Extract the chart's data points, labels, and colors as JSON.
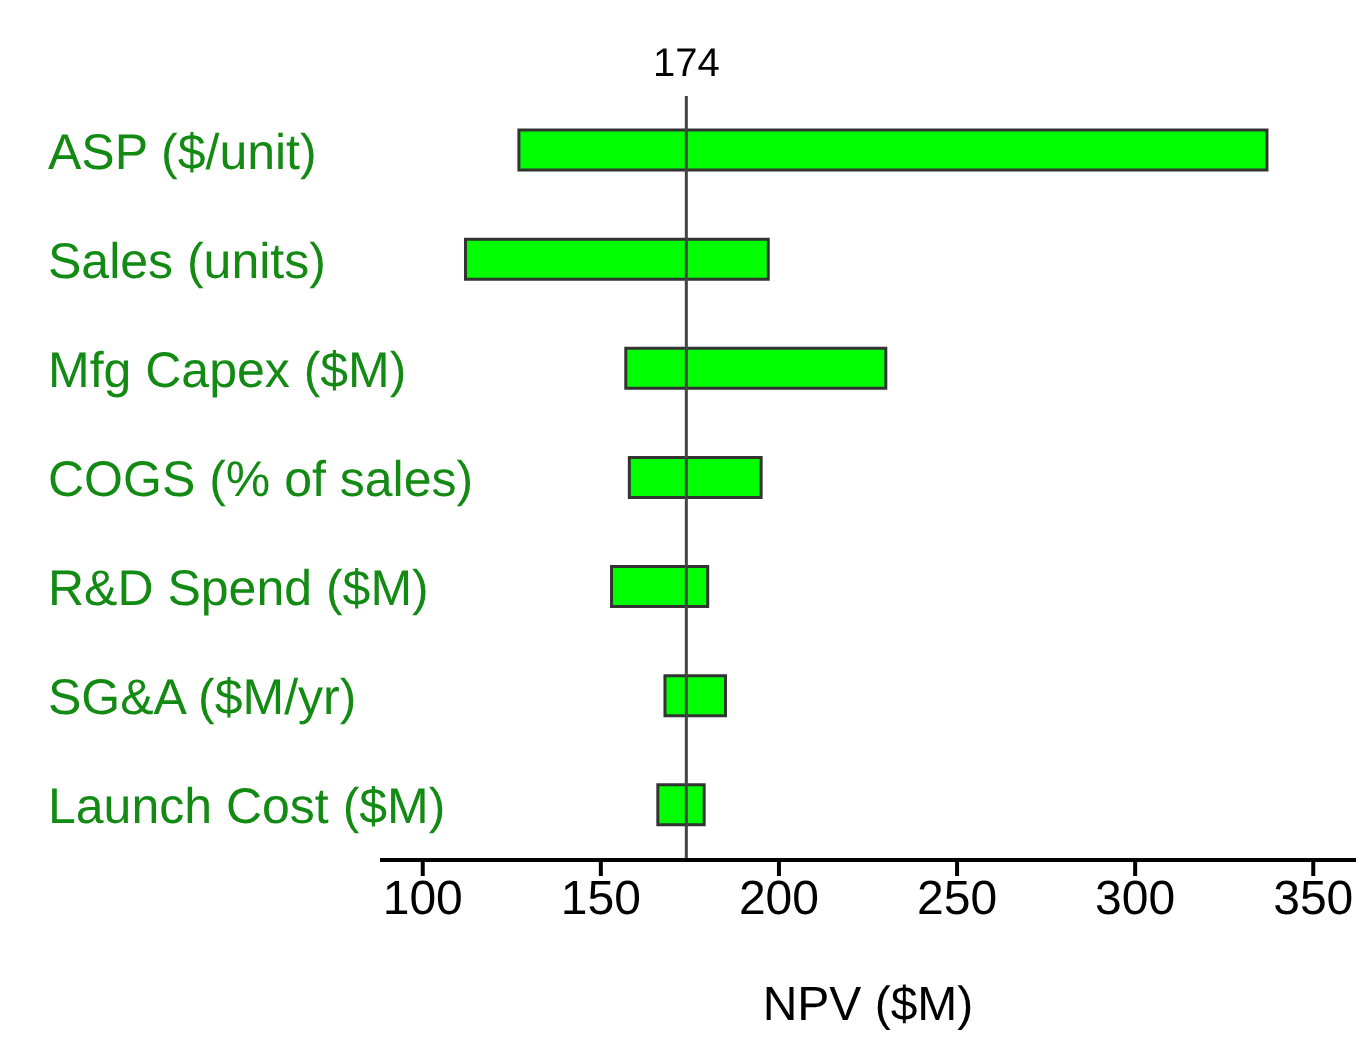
{
  "chart_data": {
    "type": "bar",
    "orientation": "horizontal",
    "xlabel": "NPV ($M)",
    "categories": [
      "ASP ($/unit)",
      "Sales (units)",
      "Mfg Capex ($M)",
      "COGS (% of sales)",
      "R&D Spend ($M)",
      "SG&A ($M/yr)",
      "Launch Cost ($M)"
    ],
    "base": [
      127,
      112,
      157,
      158,
      153,
      168,
      166
    ],
    "values": [
      210,
      85,
      73,
      37,
      27,
      17,
      13
    ],
    "color": "#00ff00",
    "xlim": [
      88,
      362
    ],
    "xticks": [
      100,
      150,
      200,
      250,
      300,
      350
    ],
    "ref_lines": [
      {
        "axis": "x",
        "value": 174,
        "label": "174"
      }
    ]
  }
}
